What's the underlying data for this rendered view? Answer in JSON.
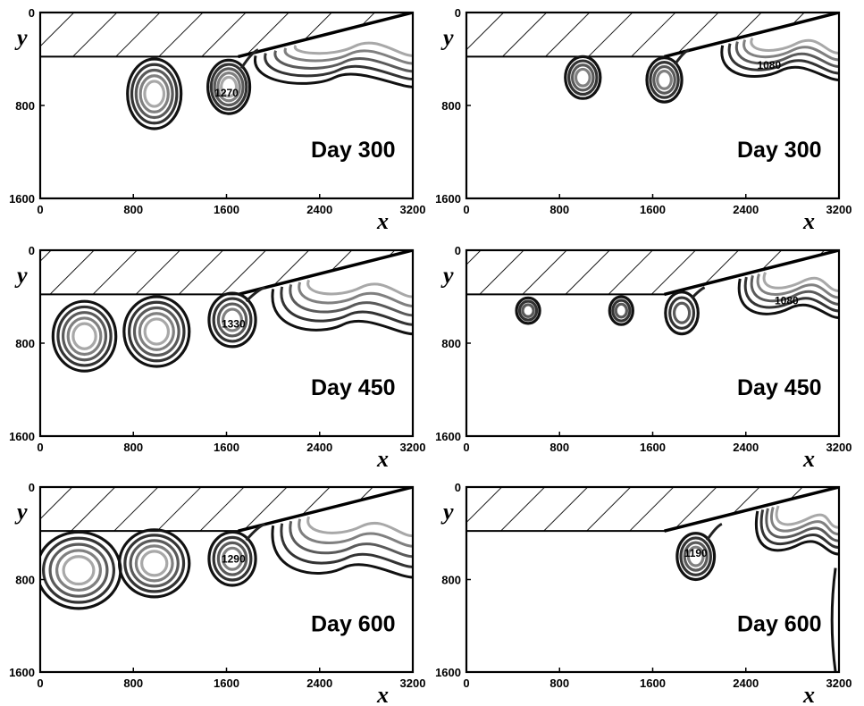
{
  "chart_data": [
    {
      "type": "contour",
      "day_label": "Day 300",
      "xlabel": "x",
      "ylabel": "y",
      "xlim": [
        0,
        3200
      ],
      "ylim": [
        1600,
        0
      ],
      "x_ticks": [
        "0",
        "800",
        "1600",
        "2400",
        "3200"
      ],
      "y_ticks": [
        "0",
        "800",
        "1600"
      ],
      "shelf": {
        "depth_at_0": 380,
        "depth_at_3200": 0,
        "flat_until": 1700
      },
      "eddies": [
        {
          "cx": 980,
          "cy": 700,
          "rx": 230,
          "ry": 300,
          "rings": 5
        },
        {
          "cx": 1620,
          "cy": 640,
          "rx": 180,
          "ry": 230,
          "rings": 5,
          "neck": true,
          "label": "1270"
        }
      ],
      "plume": {
        "x0": 1850,
        "x1": 3200,
        "bottom": 620
      },
      "contour_labels": [
        {
          "text": "1270",
          "x": 1600,
          "y": 700
        }
      ]
    },
    {
      "type": "contour",
      "day_label": "Day 300",
      "xlabel": "x",
      "ylabel": "y",
      "xlim": [
        0,
        3200
      ],
      "ylim": [
        1600,
        0
      ],
      "x_ticks": [
        "0",
        "800",
        "1600",
        "2400",
        "3200"
      ],
      "y_ticks": [
        "0",
        "800",
        "1600"
      ],
      "shelf": {
        "depth_at_0": 380,
        "depth_at_3200": 0,
        "flat_until": 1700
      },
      "eddies": [
        {
          "cx": 1000,
          "cy": 560,
          "rx": 150,
          "ry": 180,
          "rings": 4
        },
        {
          "cx": 1700,
          "cy": 580,
          "rx": 150,
          "ry": 190,
          "rings": 4,
          "neck": true
        }
      ],
      "plume": {
        "x0": 2200,
        "x1": 3200,
        "bottom": 560
      },
      "contour_labels": [
        {
          "text": "1080",
          "x": 2600,
          "y": 460
        }
      ]
    },
    {
      "type": "contour",
      "day_label": "Day 450",
      "xlabel": "x",
      "ylabel": "y",
      "xlim": [
        0,
        3200
      ],
      "ylim": [
        1600,
        0
      ],
      "x_ticks": [
        "0",
        "800",
        "1600",
        "2400",
        "3200"
      ],
      "y_ticks": [
        "0",
        "800",
        "1600"
      ],
      "shelf": {
        "depth_at_0": 380,
        "depth_at_3200": 0,
        "flat_until": 1700
      },
      "eddies": [
        {
          "cx": 380,
          "cy": 740,
          "rx": 270,
          "ry": 300,
          "rings": 5
        },
        {
          "cx": 1000,
          "cy": 700,
          "rx": 280,
          "ry": 300,
          "rings": 5
        },
        {
          "cx": 1650,
          "cy": 600,
          "rx": 200,
          "ry": 230,
          "rings": 4,
          "neck": true,
          "label": "1330"
        }
      ],
      "plume": {
        "x0": 2000,
        "x1": 3200,
        "bottom": 700
      },
      "contour_labels": [
        {
          "text": "1330",
          "x": 1660,
          "y": 640
        }
      ]
    },
    {
      "type": "contour",
      "day_label": "Day 450",
      "xlabel": "x",
      "ylabel": "y",
      "xlim": [
        0,
        3200
      ],
      "ylim": [
        1600,
        0
      ],
      "x_ticks": [
        "0",
        "800",
        "1600",
        "2400",
        "3200"
      ],
      "y_ticks": [
        "0",
        "800",
        "1600"
      ],
      "shelf": {
        "depth_at_0": 380,
        "depth_at_3200": 0,
        "flat_until": 1700
      },
      "eddies": [
        {
          "cx": 530,
          "cy": 520,
          "rx": 100,
          "ry": 110,
          "rings": 3
        },
        {
          "cx": 1330,
          "cy": 520,
          "rx": 100,
          "ry": 120,
          "rings": 3
        },
        {
          "cx": 1850,
          "cy": 540,
          "rx": 140,
          "ry": 180,
          "rings": 3,
          "neck": true
        }
      ],
      "plume": {
        "x0": 2350,
        "x1": 3200,
        "bottom": 560
      },
      "contour_labels": [
        {
          "text": "1080",
          "x": 2750,
          "y": 440
        }
      ]
    },
    {
      "type": "contour",
      "day_label": "Day 600",
      "xlabel": "x",
      "ylabel": "y",
      "xlim": [
        0,
        3200
      ],
      "ylim": [
        1600,
        0
      ],
      "x_ticks": [
        "0",
        "800",
        "1600",
        "2400",
        "3200"
      ],
      "y_ticks": [
        "0",
        "800",
        "1600"
      ],
      "shelf": {
        "depth_at_0": 380,
        "depth_at_3200": 0,
        "flat_until": 1700
      },
      "eddies": [
        {
          "cx": 330,
          "cy": 720,
          "rx": 360,
          "ry": 330,
          "rings": 5
        },
        {
          "cx": 980,
          "cy": 660,
          "rx": 300,
          "ry": 290,
          "rings": 5
        },
        {
          "cx": 1650,
          "cy": 620,
          "rx": 200,
          "ry": 230,
          "rings": 4,
          "neck": true,
          "label": "1290"
        }
      ],
      "plume": {
        "x0": 2000,
        "x1": 3200,
        "bottom": 760
      },
      "contour_labels": [
        {
          "text": "1290",
          "x": 1660,
          "y": 630
        }
      ]
    },
    {
      "type": "contour",
      "day_label": "Day 600",
      "xlabel": "x",
      "ylabel": "y",
      "xlim": [
        0,
        3200
      ],
      "ylim": [
        1600,
        0
      ],
      "x_ticks": [
        "0",
        "800",
        "1600",
        "2400",
        "3200"
      ],
      "y_ticks": [
        "0",
        "800",
        "1600"
      ],
      "shelf": {
        "depth_at_0": 380,
        "depth_at_3200": 0,
        "flat_until": 1700
      },
      "eddies": [
        {
          "cx": 1970,
          "cy": 600,
          "rx": 160,
          "ry": 200,
          "rings": 4,
          "neck": true
        }
      ],
      "plume": {
        "x0": 2500,
        "x1": 3200,
        "bottom": 560
      },
      "edge_filament": {
        "x": 3170,
        "y0": 700,
        "y1": 1600
      },
      "contour_labels": [
        {
          "text": "1190",
          "x": 1970,
          "y": 580
        }
      ]
    }
  ]
}
